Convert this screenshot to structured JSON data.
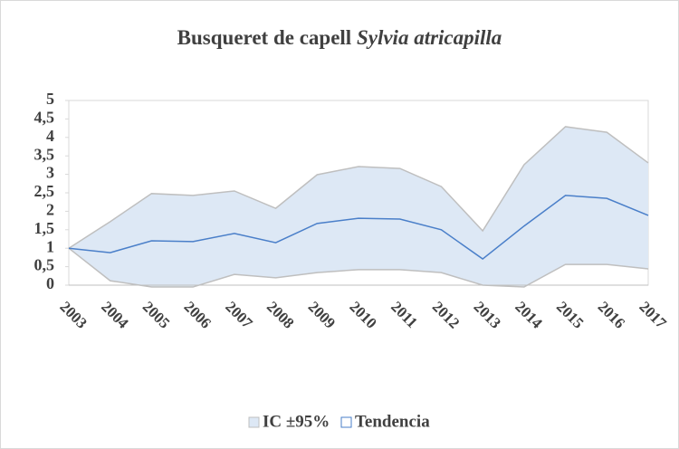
{
  "chart_data": {
    "type": "band-line",
    "title": "Busqueret de capell",
    "title_species": "Sylvia atricapilla",
    "categories": [
      "2003",
      "2004",
      "2005",
      "2006",
      "2007",
      "2008",
      "2009",
      "2010",
      "2011",
      "2012",
      "2013",
      "2014",
      "2015",
      "2016",
      "2017"
    ],
    "series": [
      {
        "name": "IC ±95%",
        "color": "#dde8f5",
        "edge_color": "#bfbfbf",
        "upper": [
          1.0,
          1.72,
          2.48,
          2.43,
          2.55,
          2.08,
          2.99,
          3.21,
          3.16,
          2.67,
          1.47,
          3.26,
          4.29,
          4.14,
          3.31
        ],
        "lower": [
          1.0,
          0.12,
          -0.05,
          -0.05,
          0.29,
          0.2,
          0.34,
          0.42,
          0.42,
          0.34,
          0.0,
          -0.05,
          0.56,
          0.56,
          0.44
        ]
      },
      {
        "name": "Tendencia",
        "color": "#4a7fc9",
        "values": [
          1.0,
          0.88,
          1.2,
          1.18,
          1.4,
          1.15,
          1.67,
          1.81,
          1.79,
          1.5,
          0.71,
          1.6,
          2.43,
          2.35,
          1.89
        ]
      }
    ],
    "ylim": [
      0,
      5
    ],
    "yticks": [
      0,
      {
        "value": 0.5,
        "label": "0,5"
      },
      1,
      {
        "value": 1.5,
        "label": "1,5"
      },
      2,
      {
        "value": 2.5,
        "label": "2,5"
      },
      3,
      {
        "value": 3.5,
        "label": "3,5"
      },
      4,
      {
        "value": 4.5,
        "label": "4,5"
      },
      5
    ],
    "legend": "bottom"
  }
}
